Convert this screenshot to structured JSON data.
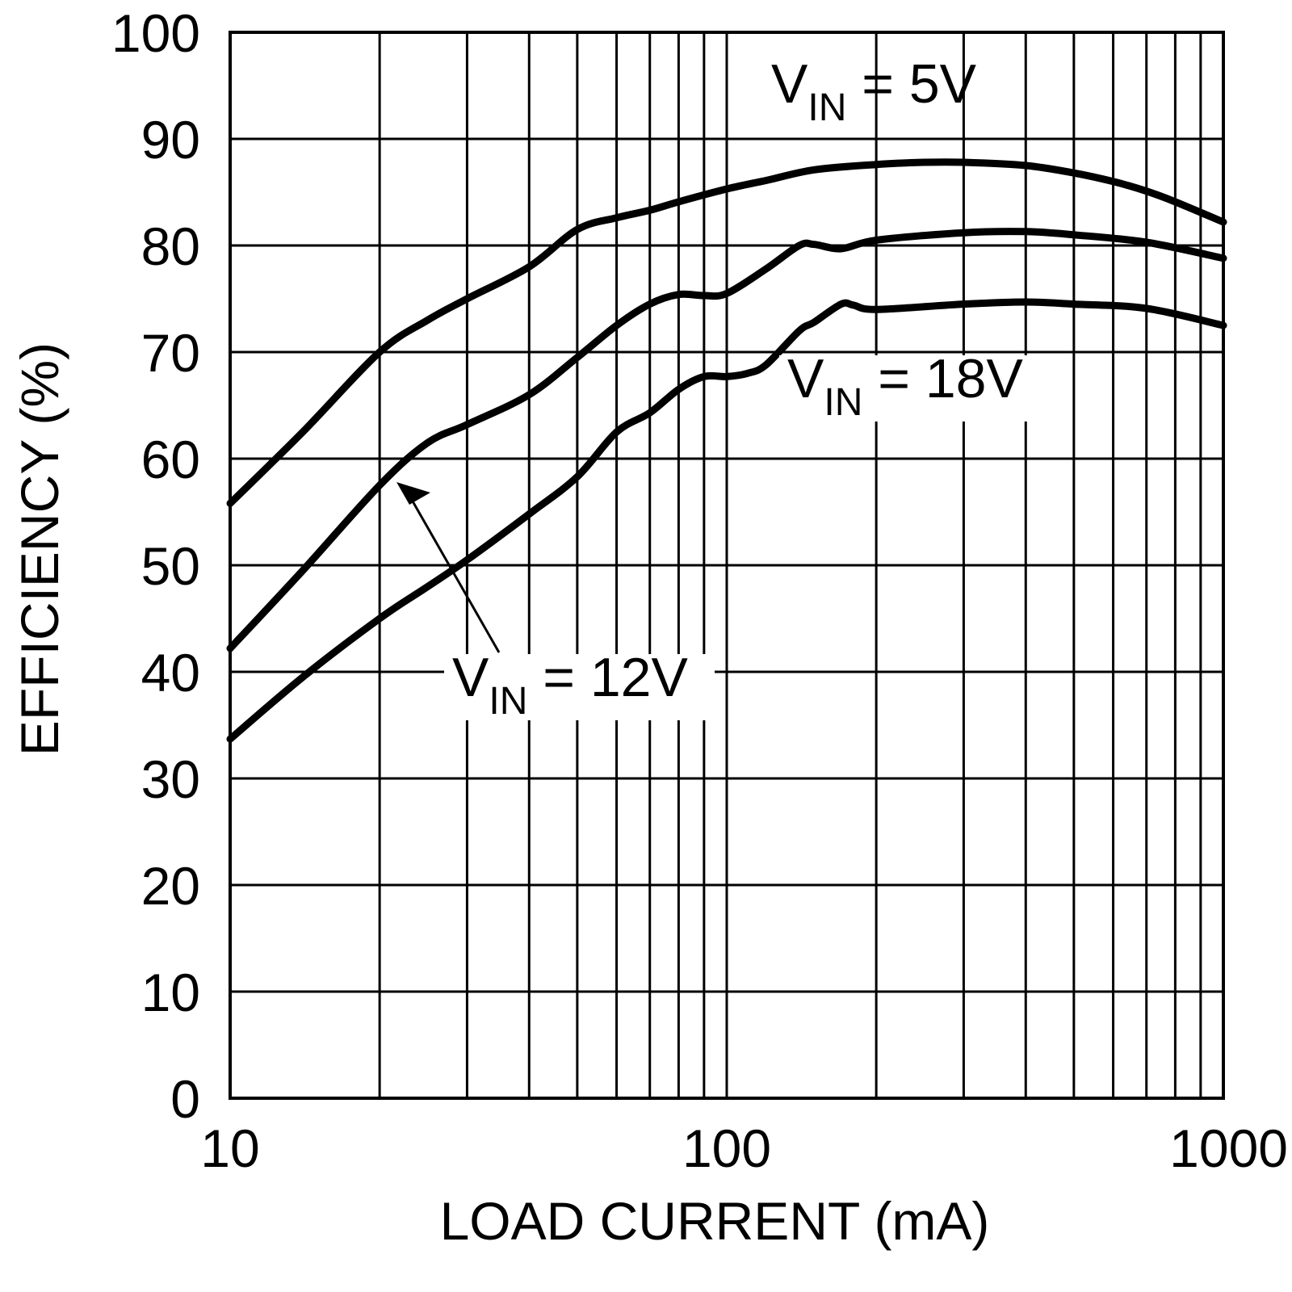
{
  "chart_data": {
    "type": "line",
    "xlabel": "LOAD CURRENT (mA)",
    "ylabel": "EFFICIENCY (%)",
    "xscale": "log",
    "xlim": [
      10,
      1000
    ],
    "ylim": [
      0,
      100
    ],
    "x_ticks": [
      "10",
      "100",
      "1000"
    ],
    "y_ticks": [
      "0",
      "10",
      "20",
      "30",
      "40",
      "50",
      "60",
      "70",
      "80",
      "90",
      "100"
    ],
    "grid": true,
    "annotations": [
      {
        "base": "V",
        "sub": "IN",
        "rest": " = 5V"
      },
      {
        "base": "V",
        "sub": "IN",
        "rest": " = 18V"
      },
      {
        "base": "V",
        "sub": "IN",
        "rest": " = 12V"
      }
    ],
    "series": [
      {
        "x": [
          10,
          14,
          20,
          25,
          30,
          40,
          50,
          60,
          70,
          80,
          100,
          120,
          150,
          200,
          250,
          300,
          400,
          500,
          600,
          700,
          800,
          1000
        ],
        "y": [
          55.8,
          62.5,
          70,
          73,
          75,
          78,
          81.5,
          82.6,
          83.3,
          84.1,
          85.3,
          86.1,
          87.1,
          87.6,
          87.8,
          87.8,
          87.5,
          86.8,
          86,
          85.1,
          84.1,
          82.2
        ]
      },
      {
        "x": [
          10,
          14,
          20,
          25,
          30,
          40,
          50,
          60,
          70,
          80,
          90,
          100,
          120,
          140,
          150,
          170,
          200,
          300,
          400,
          500,
          700,
          1000
        ],
        "y": [
          42.2,
          49.5,
          57.5,
          61.5,
          63.2,
          66,
          69.5,
          72.5,
          74.5,
          75.4,
          75.3,
          75.5,
          77.8,
          80,
          80.1,
          79.7,
          80.5,
          81.2,
          81.3,
          81,
          80.3,
          78.8
        ]
      },
      {
        "x": [
          10,
          14,
          20,
          25,
          30,
          40,
          50,
          60,
          70,
          80,
          90,
          100,
          110,
          120,
          140,
          150,
          170,
          180,
          200,
          300,
          400,
          500,
          700,
          1000
        ],
        "y": [
          33.7,
          39.5,
          45,
          48,
          50.5,
          54.8,
          58.3,
          62.5,
          64.3,
          66.5,
          67.7,
          67.7,
          68,
          68.8,
          72,
          72.8,
          74.5,
          74.4,
          74,
          74.5,
          74.7,
          74.5,
          74.1,
          72.5
        ]
      }
    ]
  }
}
